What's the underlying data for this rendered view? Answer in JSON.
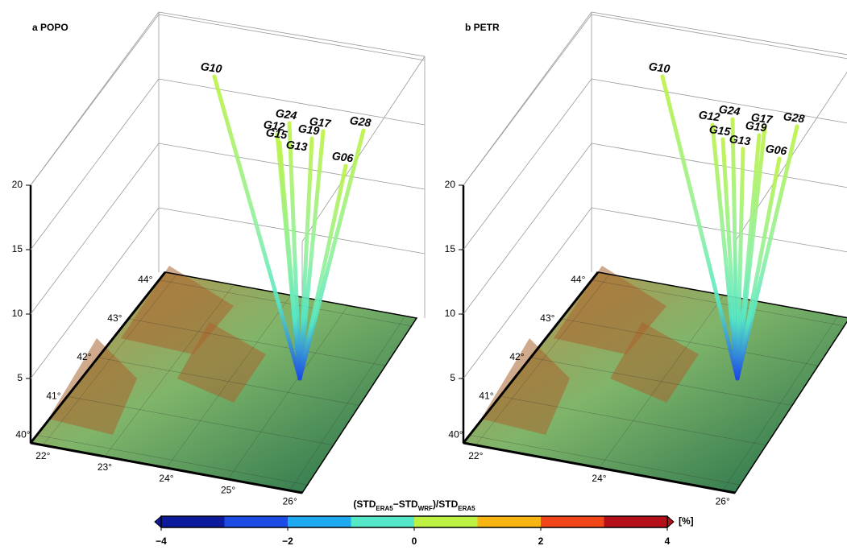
{
  "chart_data": [
    {
      "type": "3d-terrain",
      "title": "a POPO",
      "zlim": [
        0,
        20
      ],
      "zticks": [
        5,
        10,
        15,
        20
      ],
      "ylim": [
        39.8,
        44.2
      ],
      "yticks": [
        {
          "value": 40,
          "label": "40°"
        },
        {
          "value": 41,
          "label": "41°"
        },
        {
          "value": 42,
          "label": "42°"
        },
        {
          "value": 43,
          "label": "43°"
        },
        {
          "value": 44,
          "label": "44°"
        }
      ],
      "xlim": [
        21.8,
        26.2
      ],
      "xticks": [
        {
          "value": 22,
          "label": "22°"
        },
        {
          "value": 23,
          "label": "23°"
        },
        {
          "value": 24,
          "label": "24°"
        },
        {
          "value": 25,
          "label": "25°"
        },
        {
          "value": 26,
          "label": "26°"
        }
      ],
      "satellites": [
        "G10",
        "G24",
        "G17",
        "G28",
        "G12",
        "G19",
        "G15",
        "G13",
        "G06"
      ]
    },
    {
      "type": "3d-terrain",
      "title": "b PETR",
      "zlim": [
        0,
        20
      ],
      "zticks": [
        5,
        10,
        15,
        20
      ],
      "ylim": [
        39.8,
        44.2
      ],
      "yticks": [
        {
          "value": 40,
          "label": "40°"
        },
        {
          "value": 41,
          "label": "41°"
        },
        {
          "value": 42,
          "label": "42°"
        },
        {
          "value": 43,
          "label": "43°"
        },
        {
          "value": 44,
          "label": "44°"
        }
      ],
      "xlim": [
        21.8,
        26.2
      ],
      "xticks": [
        {
          "value": 22,
          "label": "22°"
        },
        {
          "value": 24,
          "label": "24°"
        },
        {
          "value": 26,
          "label": "26°"
        }
      ],
      "satellites": [
        "G10",
        "G24",
        "G12",
        "G17",
        "G28",
        "G15",
        "G19",
        "G13",
        "G06"
      ]
    }
  ],
  "colorbar": {
    "title": [
      "(STD",
      "ERA5",
      "−STD",
      "WRF",
      ")/STD",
      "ERA5"
    ],
    "unit": "[%]",
    "lim": [
      -4,
      4
    ],
    "ticks": [
      {
        "value": -4,
        "label": "−4"
      },
      {
        "value": -2,
        "label": "−2"
      },
      0,
      2,
      4
    ],
    "bounds": [
      -4,
      -3,
      -2,
      -1,
      0,
      1,
      2,
      3,
      4
    ],
    "colors": [
      "#0d1a9c",
      "#1c4be6",
      "#1eaaf0",
      "#55e8c8",
      "#bdf244",
      "#f7b514",
      "#f0461a",
      "#b3101a"
    ]
  }
}
